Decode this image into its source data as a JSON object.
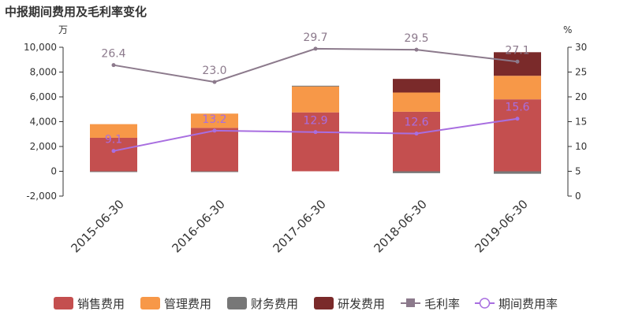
{
  "chart_data": {
    "type": "bar",
    "title": "中报期间费用及毛利率变化",
    "left_unit": "万",
    "right_unit": "%",
    "categories": [
      "2015-06-30",
      "2016-06-30",
      "2017-06-30",
      "2018-06-30",
      "2019-06-30"
    ],
    "left_axis": {
      "ylim": [
        -2000,
        10000
      ],
      "ticks": [
        "-2,000",
        "0",
        "2,000",
        "4,000",
        "6,000",
        "8,000",
        "10,000"
      ]
    },
    "right_axis": {
      "ylim": [
        0,
        30
      ],
      "ticks": [
        "0",
        "5",
        "10",
        "15",
        "20",
        "25",
        "30"
      ]
    },
    "bar_series": [
      {
        "name": "销售费用",
        "color": "#c44f4f",
        "values": [
          2700,
          3500,
          4750,
          4800,
          5800
        ]
      },
      {
        "name": "管理费用",
        "color": "#f79848",
        "values": [
          1100,
          1150,
          2100,
          1550,
          1900
        ]
      },
      {
        "name": "财务费用",
        "color": "#777777",
        "values": [
          -50,
          -30,
          50,
          -150,
          -200
        ]
      },
      {
        "name": "研发费用",
        "color": "#7a2a2a",
        "values": [
          0,
          0,
          0,
          1100,
          1900
        ]
      }
    ],
    "line_series": [
      {
        "name": "毛利率",
        "color": "#8c7a8c",
        "values": [
          26.4,
          23.0,
          29.7,
          29.5,
          27.1
        ],
        "labels": [
          "26.4",
          "23.0",
          "29.7",
          "29.5",
          "27.1"
        ]
      },
      {
        "name": "期间费用率",
        "color": "#a86ee0",
        "values": [
          9.1,
          13.2,
          12.9,
          12.6,
          15.6
        ],
        "labels": [
          "9.1",
          "13.2",
          "12.9",
          "12.6",
          "15.6"
        ]
      }
    ],
    "legend_position": "bottom",
    "grid": false
  }
}
